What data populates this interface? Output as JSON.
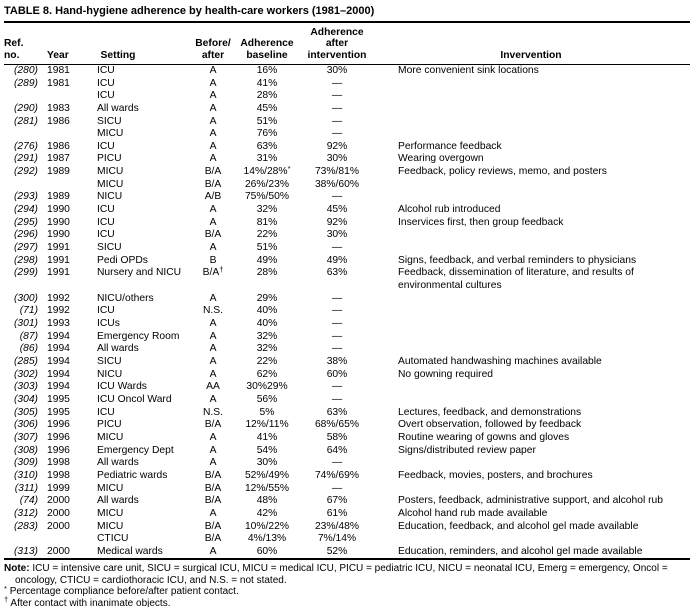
{
  "page": {
    "title": "TABLE 8. Hand-hygiene adherence by health-care workers (1981–2000)"
  },
  "table": {
    "columns": [
      "Ref. no.",
      "Year",
      "Setting",
      "Before/\nafter",
      "Adherence\nbaseline",
      "Adherence\nafter\nintervention",
      "Invervention"
    ],
    "column_names": [
      "ref-no",
      "year",
      "setting",
      "before-after",
      "adherence-baseline",
      "adherence-after-intervention",
      "intervention"
    ],
    "rows": [
      [
        "(280)",
        "1981",
        "ICU",
        "A",
        "16%",
        "30%",
        "More convenient sink locations"
      ],
      [
        "(289)",
        "1981",
        "ICU",
        "A",
        "41%",
        "—",
        ""
      ],
      [
        "",
        "",
        "ICU",
        "A",
        "28%",
        "—",
        ""
      ],
      [
        "(290)",
        "1983",
        "All wards",
        "A",
        "45%",
        "—",
        ""
      ],
      [
        "(281)",
        "1986",
        "SICU",
        "A",
        "51%",
        "—",
        ""
      ],
      [
        "",
        "",
        "MICU",
        "A",
        "76%",
        "—",
        ""
      ],
      [
        "(276)",
        "1986",
        "ICU",
        "A",
        "63%",
        "92%",
        "Performance feedback"
      ],
      [
        "(291)",
        "1987",
        "PICU",
        "A",
        "31%",
        "30%",
        "Wearing overgown"
      ],
      [
        "(292)",
        "1989",
        "MICU",
        "B/A",
        "14%/28%*",
        "73%/81%",
        "Feedback, policy reviews, memo, and posters"
      ],
      [
        "",
        "",
        "MICU",
        "B/A",
        "26%/23%",
        "38%/60%",
        ""
      ],
      [
        "(293)",
        "1989",
        "NICU",
        "A/B",
        "75%/50%",
        "—",
        ""
      ],
      [
        "(294)",
        "1990",
        "ICU",
        "A",
        "32%",
        "45%",
        "Alcohol rub introduced"
      ],
      [
        "(295)",
        "1990",
        "ICU",
        "A",
        "81%",
        "92%",
        "Inservices first, then group feedback"
      ],
      [
        "(296)",
        "1990",
        "ICU",
        "B/A",
        "22%",
        "30%",
        ""
      ],
      [
        "(297)",
        "1991",
        "SICU",
        "A",
        "51%",
        "—",
        ""
      ],
      [
        "(298)",
        "1991",
        "Pedi OPDs",
        "B",
        "49%",
        "49%",
        "Signs, feedback, and verbal reminders to physicians"
      ],
      [
        "(299)",
        "1991",
        "Nursery and NICU",
        "B/A†",
        "28%",
        "63%",
        "Feedback, dissemination of literature, and results of environmental cultures"
      ],
      [
        "(300)",
        "1992",
        "NICU/others",
        "A",
        "29%",
        "—",
        ""
      ],
      [
        "(71)",
        "1992",
        "ICU",
        "N.S.",
        "40%",
        "—",
        ""
      ],
      [
        "(301)",
        "1993",
        "ICUs",
        "A",
        "40%",
        "—",
        ""
      ],
      [
        "(87)",
        "1994",
        "Emergency Room",
        "A",
        "32%",
        "—",
        ""
      ],
      [
        "(86)",
        "1994",
        "All wards",
        "A",
        "32%",
        "—",
        ""
      ],
      [
        "(285)",
        "1994",
        "SICU",
        "A",
        "22%",
        "38%",
        "Automated handwashing machines available"
      ],
      [
        "(302)",
        "1994",
        "NICU",
        "A",
        "62%",
        "60%",
        "No gowning required"
      ],
      [
        "(303)",
        "1994",
        "ICU Wards",
        "AA",
        "30%29%",
        "—",
        ""
      ],
      [
        "(304)",
        "1995",
        "ICU Oncol Ward",
        "A",
        "56%",
        "—",
        ""
      ],
      [
        "(305)",
        "1995",
        "ICU",
        "N.S.",
        "5%",
        "63%",
        "Lectures, feedback, and demonstrations"
      ],
      [
        "(306)",
        "1996",
        "PICU",
        "B/A",
        "12%/11%",
        "68%/65%",
        "Overt observation, followed by feedback"
      ],
      [
        "(307)",
        "1996",
        "MICU",
        "A",
        "41%",
        "58%",
        "Routine wearing of gowns and gloves"
      ],
      [
        "(308)",
        "1996",
        "Emergency Dept",
        "A",
        "54%",
        "64%",
        "Signs/distributed review paper"
      ],
      [
        "(309)",
        "1998",
        "All wards",
        "A",
        "30%",
        "—",
        ""
      ],
      [
        "(310)",
        "1998",
        "Pediatric wards",
        "B/A",
        "52%/49%",
        "74%/69%",
        "Feedback, movies, posters, and brochures"
      ],
      [
        "(311)",
        "1999",
        "MICU",
        "B/A",
        "12%/55%",
        "—",
        ""
      ],
      [
        "(74)",
        "2000",
        "All wards",
        "B/A",
        "48%",
        "67%",
        "Posters, feedback, administrative support, and alcohol rub"
      ],
      [
        "(312)",
        "2000",
        "MICU",
        "A",
        "42%",
        "61%",
        "Alcohol hand rub made available"
      ],
      [
        "(283)",
        "2000",
        "MICU",
        "B/A",
        "10%/22%",
        "23%/48%",
        "Education, feedback, and alcohol gel made available"
      ],
      [
        "",
        "",
        "CTICU",
        "B/A",
        "4%/13%",
        "7%/14%",
        ""
      ],
      [
        "(313)",
        "2000",
        "Medical wards",
        "A",
        "60%",
        "52%",
        "Education, reminders, and alcohol gel made available"
      ]
    ]
  },
  "footnotes": {
    "note_label": "Note:",
    "note_text": "ICU = intensive care unit, SICU = surgical ICU, MICU = medical ICU, PICU = pediatric ICU, NICU = neonatal ICU, Emerg = emergency, Oncol = oncology, CTICU = cardiothoracic ICU, and N.S. = not stated.",
    "asterisk_marker": "*",
    "asterisk_text": "Percentage compliance before/after patient contact.",
    "dagger_marker": "†",
    "dagger_text": "After contact with inanimate objects."
  }
}
